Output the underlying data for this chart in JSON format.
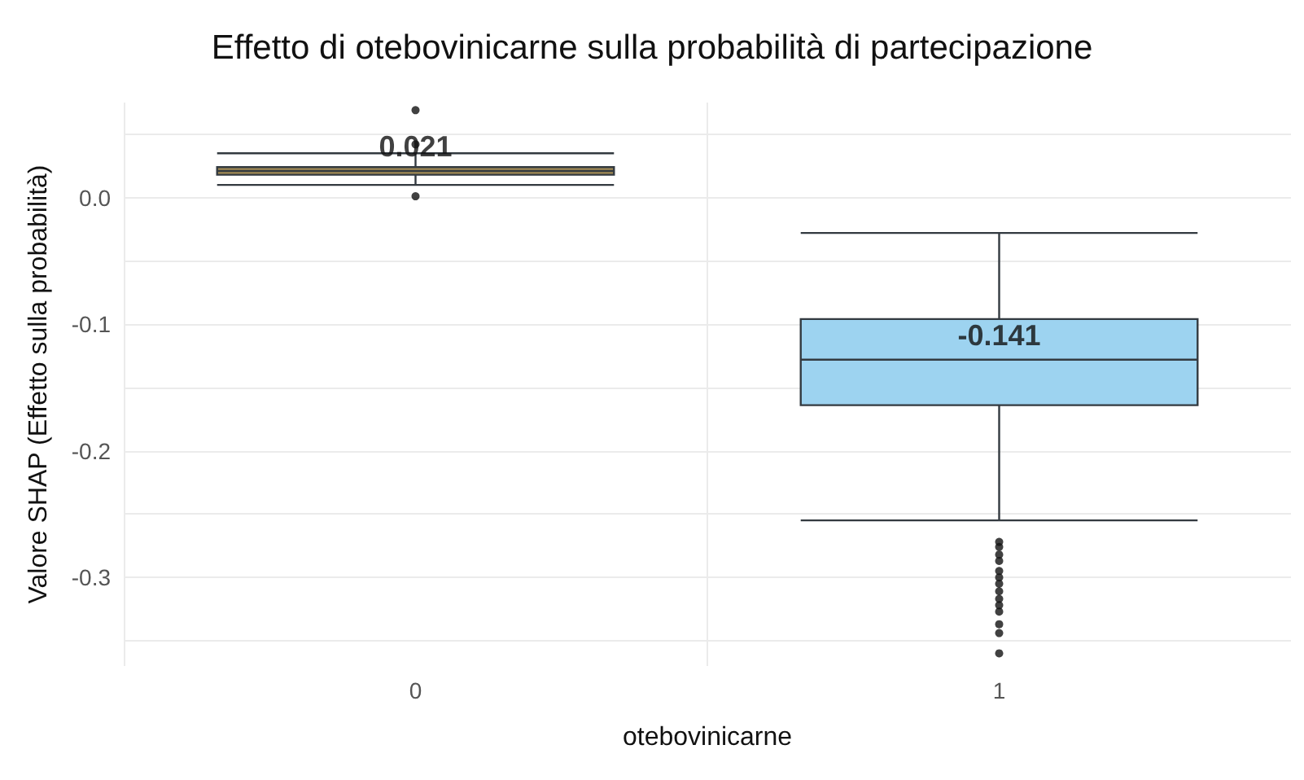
{
  "chart_data": {
    "type": "box",
    "title": "Effetto di otebovinicarne sulla probabilità di partecipazione",
    "xlabel": "otebovinicarne",
    "ylabel": "Valore SHAP (Effetto sulla probabilità)",
    "categories": [
      "0",
      "1"
    ],
    "boxes": [
      {
        "low": 0.01,
        "q1": 0.018,
        "median": 0.021,
        "q3": 0.024,
        "high": 0.035,
        "outliers": [
          0.069,
          0.042,
          0.001
        ]
      },
      {
        "low": -0.255,
        "q1": -0.164,
        "median": -0.128,
        "q3": -0.096,
        "high": -0.028,
        "outliers": [
          -0.272,
          -0.276,
          -0.282,
          -0.287,
          -0.295,
          -0.3,
          -0.305,
          -0.311,
          -0.317,
          -0.322,
          -0.327,
          -0.337,
          -0.344,
          -0.36
        ]
      }
    ],
    "colors": [
      "#a38b55",
      "#9dd3f0"
    ],
    "annotations": [
      "0.021",
      "-0.141"
    ],
    "ylim": [
      -0.37,
      0.075
    ],
    "yticks": [
      {
        "value": -0.35,
        "label": null
      },
      {
        "value": -0.3,
        "label": "-0.3"
      },
      {
        "value": -0.25,
        "label": null
      },
      {
        "value": -0.2,
        "label": "-0.2"
      },
      {
        "value": -0.15,
        "label": null
      },
      {
        "value": -0.1,
        "label": "-0.1"
      },
      {
        "value": -0.05,
        "label": null
      },
      {
        "value": 0,
        "label": "0.0"
      },
      {
        "value": 0.05,
        "label": null
      }
    ],
    "grid": true
  }
}
